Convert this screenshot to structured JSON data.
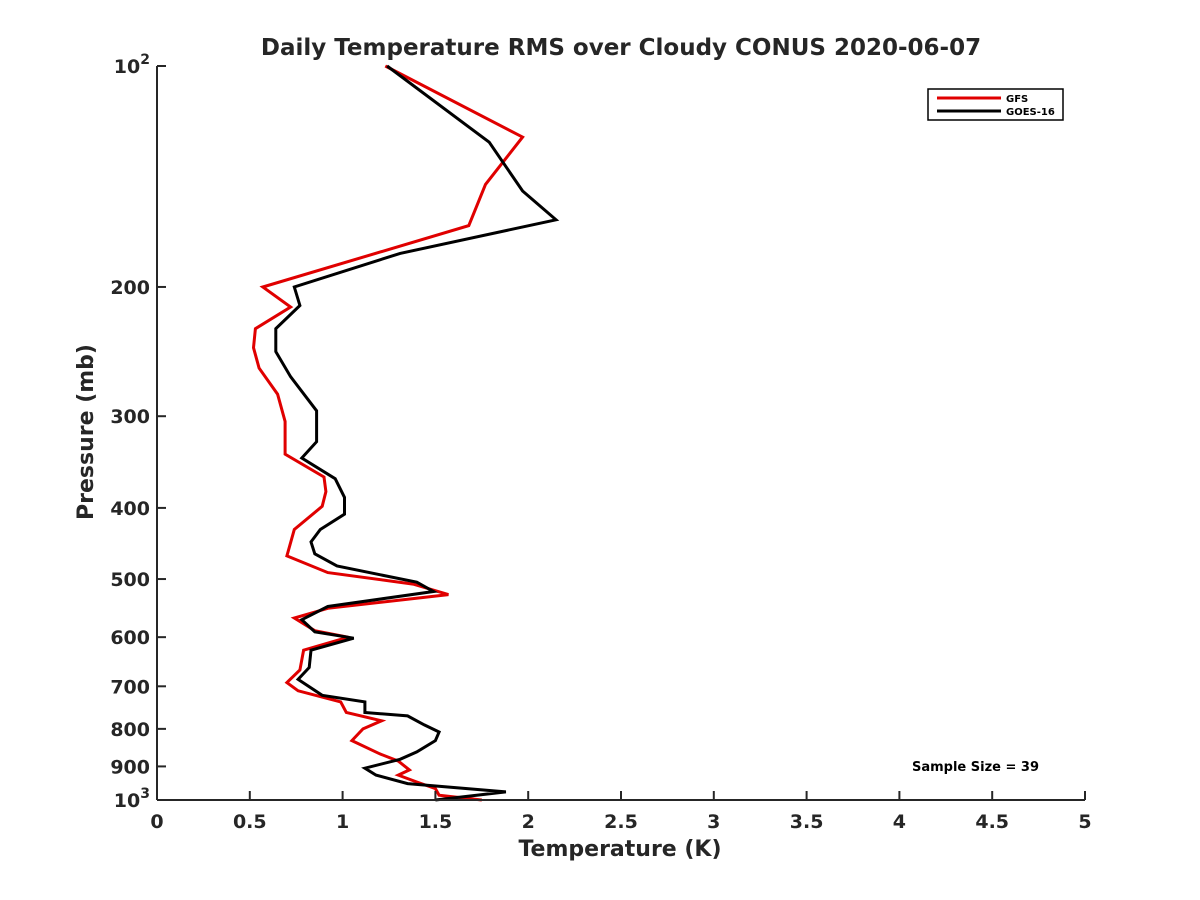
{
  "chart_data": {
    "type": "line",
    "orientation": "vertical-profile",
    "title": "Daily Temperature RMS over Cloudy CONUS 2020-06-07",
    "xlabel": "Temperature (K)",
    "ylabel": "Pressure (mb)",
    "xlim": [
      0,
      5
    ],
    "ylim": [
      100,
      1000
    ],
    "yscale": "log",
    "y_reversed": true,
    "grid": false,
    "legend_position": "top-right",
    "x_ticks": [
      "0",
      "0.5",
      "1",
      "1.5",
      "2",
      "2.5",
      "3",
      "3.5",
      "4",
      "4.5",
      "5"
    ],
    "x_tick_values": [
      0,
      0.5,
      1,
      1.5,
      2,
      2.5,
      3,
      3.5,
      4,
      4.5,
      5
    ],
    "y_ticks": [
      {
        "value": 100,
        "label": "10",
        "sup": "2"
      },
      {
        "value": 200,
        "label": "200",
        "sup": ""
      },
      {
        "value": 300,
        "label": "300",
        "sup": ""
      },
      {
        "value": 400,
        "label": "400",
        "sup": ""
      },
      {
        "value": 500,
        "label": "500",
        "sup": ""
      },
      {
        "value": 600,
        "label": "600",
        "sup": ""
      },
      {
        "value": 700,
        "label": "700",
        "sup": ""
      },
      {
        "value": 800,
        "label": "800",
        "sup": ""
      },
      {
        "value": 900,
        "label": "900",
        "sup": ""
      },
      {
        "value": 1000,
        "label": "10",
        "sup": "3"
      }
    ],
    "annotation": "Sample Size = 39",
    "series": [
      {
        "name": "GFS",
        "color": "#e00000",
        "points": [
          [
            1.23,
            100
          ],
          [
            1.97,
            125
          ],
          [
            1.77,
            145
          ],
          [
            1.68,
            165
          ],
          [
            0.57,
            200
          ],
          [
            0.72,
            213
          ],
          [
            0.53,
            228
          ],
          [
            0.52,
            242
          ],
          [
            0.55,
            258
          ],
          [
            0.65,
            280
          ],
          [
            0.69,
            305
          ],
          [
            0.69,
            338
          ],
          [
            0.9,
            363
          ],
          [
            0.91,
            380
          ],
          [
            0.89,
            398
          ],
          [
            0.74,
            428
          ],
          [
            0.7,
            465
          ],
          [
            0.92,
            490
          ],
          [
            1.38,
            508
          ],
          [
            1.57,
            525
          ],
          [
            0.92,
            548
          ],
          [
            0.74,
            565
          ],
          [
            0.85,
            588
          ],
          [
            1.03,
            600
          ],
          [
            0.79,
            625
          ],
          [
            0.77,
            665
          ],
          [
            0.7,
            692
          ],
          [
            0.76,
            710
          ],
          [
            0.99,
            735
          ],
          [
            1.02,
            760
          ],
          [
            1.21,
            780
          ],
          [
            1.11,
            800
          ],
          [
            1.05,
            830
          ],
          [
            1.2,
            865
          ],
          [
            1.3,
            885
          ],
          [
            1.36,
            910
          ],
          [
            1.3,
            925
          ],
          [
            1.4,
            945
          ],
          [
            1.5,
            965
          ],
          [
            1.52,
            985
          ],
          [
            1.75,
            1000
          ]
        ]
      },
      {
        "name": "GOES-16",
        "color": "#000000",
        "points": [
          [
            1.24,
            100
          ],
          [
            1.79,
            127
          ],
          [
            1.97,
            148
          ],
          [
            2.15,
            162
          ],
          [
            1.31,
            180
          ],
          [
            0.74,
            200
          ],
          [
            0.77,
            212
          ],
          [
            0.64,
            228
          ],
          [
            0.64,
            245
          ],
          [
            0.72,
            265
          ],
          [
            0.86,
            295
          ],
          [
            0.86,
            325
          ],
          [
            0.78,
            342
          ],
          [
            0.96,
            365
          ],
          [
            1.01,
            387
          ],
          [
            1.01,
            408
          ],
          [
            0.88,
            428
          ],
          [
            0.83,
            445
          ],
          [
            0.85,
            462
          ],
          [
            0.97,
            480
          ],
          [
            1.4,
            505
          ],
          [
            1.49,
            520
          ],
          [
            0.92,
            545
          ],
          [
            0.78,
            568
          ],
          [
            0.85,
            590
          ],
          [
            1.06,
            602
          ],
          [
            0.83,
            625
          ],
          [
            0.82,
            660
          ],
          [
            0.76,
            685
          ],
          [
            0.89,
            720
          ],
          [
            1.12,
            735
          ],
          [
            1.12,
            760
          ],
          [
            1.35,
            768
          ],
          [
            1.44,
            790
          ],
          [
            1.52,
            808
          ],
          [
            1.5,
            830
          ],
          [
            1.4,
            860
          ],
          [
            1.31,
            880
          ],
          [
            1.12,
            905
          ],
          [
            1.18,
            925
          ],
          [
            1.35,
            950
          ],
          [
            1.88,
            975
          ],
          [
            1.5,
            1000
          ]
        ]
      }
    ]
  }
}
